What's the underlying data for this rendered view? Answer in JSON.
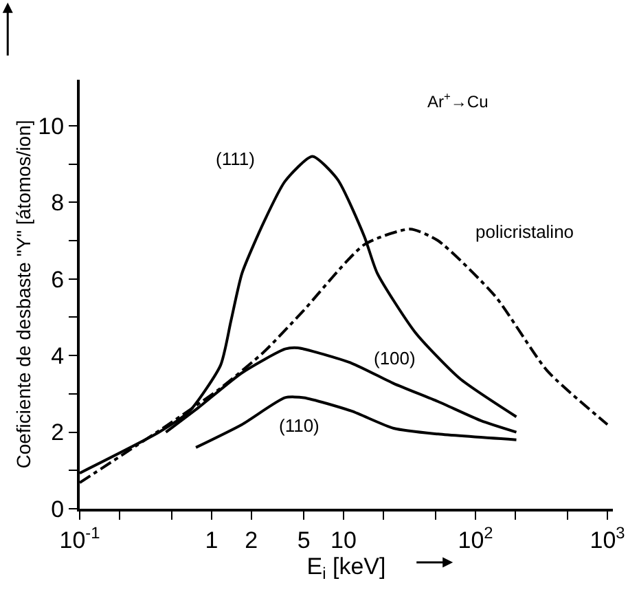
{
  "chart_data": {
    "type": "line",
    "xlabel": "E$_{i}$ [keV]",
    "ylabel": "Coeficiente de desbaste \"Y\" [átomos/ion]",
    "annotations": [
      "Ar$^{+}$→Cu"
    ],
    "log": "x",
    "legend": false,
    "marker": "none",
    "xlim": [
      0.1,
      1100
    ],
    "ylim": [
      0,
      11.2
    ],
    "xticks": [
      {
        "value": 0.1,
        "label": "10$^{-1}$"
      },
      {
        "value": 0.2,
        "label": null
      },
      {
        "value": 0.5,
        "label": null
      },
      1,
      2,
      5,
      10,
      {
        "value": 20,
        "label": null
      },
      {
        "value": 50,
        "label": null
      },
      {
        "value": 100,
        "label": "10$^{2}$"
      },
      {
        "value": 200,
        "label": null
      },
      {
        "value": 500,
        "label": null
      },
      {
        "value": 1000,
        "label": "10$^{3}$"
      }
    ],
    "yticks": [
      0,
      {
        "value": 1,
        "label": null
      },
      2,
      {
        "value": 3,
        "label": null
      },
      4,
      {
        "value": 5,
        "label": null
      },
      6,
      {
        "value": 7,
        "label": null
      },
      8,
      {
        "value": 9,
        "label": null
      },
      10
    ],
    "series": [
      {
        "name": "(111)",
        "color": "#000000",
        "line_style": "solid",
        "x": [
          0.1,
          0.4,
          0.68,
          1.17,
          1.4,
          1.7,
          2.5,
          3.6,
          5.8,
          9,
          14.4,
          18,
          35,
          76,
          204
        ],
        "values": [
          0.93,
          2.0,
          2.55,
          3.75,
          4.9,
          6.15,
          7.5,
          8.55,
          9.2,
          8.6,
          7.1,
          6.15,
          4.6,
          3.4,
          2.4
        ]
      },
      {
        "name": "policristalino",
        "color": "#000000",
        "line_style": "dashdot",
        "x": [
          0.1,
          0.47,
          1.17,
          2.5,
          4.9,
          14.4,
          32,
          52,
          141,
          350,
          1000
        ],
        "values": [
          0.68,
          2.2,
          3.15,
          4.1,
          5.15,
          6.9,
          7.3,
          7.0,
          5.55,
          3.6,
          2.2
        ]
      },
      {
        "name": "(100)",
        "color": "#000000",
        "line_style": "solid",
        "x": [
          0.45,
          0.8,
          1.7,
          3.6,
          4.5,
          11.5,
          24,
          52,
          110,
          204
        ],
        "values": [
          2.0,
          2.65,
          3.55,
          4.17,
          4.2,
          3.8,
          3.27,
          2.8,
          2.3,
          2.0
        ]
      },
      {
        "name": "(110)",
        "color": "#000000",
        "line_style": "solid",
        "x": [
          0.76,
          1.7,
          3.6,
          5,
          11.5,
          24,
          52,
          204
        ],
        "values": [
          1.6,
          2.2,
          2.9,
          2.9,
          2.55,
          2.1,
          1.95,
          1.8
        ]
      }
    ]
  }
}
